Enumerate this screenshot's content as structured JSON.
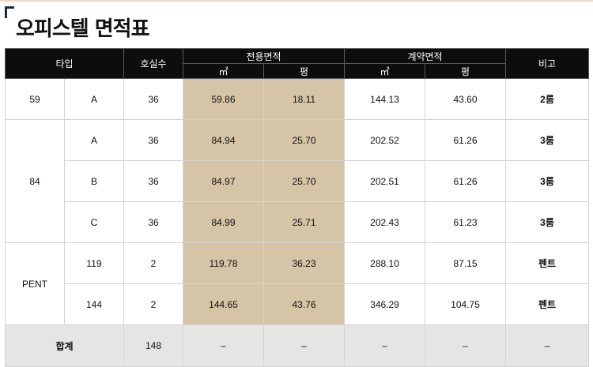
{
  "title": "오피스텔 면적표",
  "header": {
    "type": "타입",
    "units": "호실수",
    "exclusive": "전용면적",
    "contract": "계약면적",
    "note": "비고",
    "sqm": "㎡",
    "pyeong": "평"
  },
  "rows": [
    {
      "group": "59",
      "sub": "A",
      "units": "36",
      "ex_sqm": "59.86",
      "ex_py": "18.11",
      "ct_sqm": "144.13",
      "ct_py": "43.60",
      "note": "2룸"
    },
    {
      "group": "84",
      "sub": "A",
      "units": "36",
      "ex_sqm": "84.94",
      "ex_py": "25.70",
      "ct_sqm": "202.52",
      "ct_py": "61.26",
      "note": "3룸"
    },
    {
      "sub": "B",
      "units": "36",
      "ex_sqm": "84.97",
      "ex_py": "25.70",
      "ct_sqm": "202.51",
      "ct_py": "61.26",
      "note": "3룸"
    },
    {
      "sub": "C",
      "units": "36",
      "ex_sqm": "84.99",
      "ex_py": "25.71",
      "ct_sqm": "202.43",
      "ct_py": "61.23",
      "note": "3룸"
    },
    {
      "group": "PENT",
      "sub": "119",
      "units": "2",
      "ex_sqm": "119.78",
      "ex_py": "36.23",
      "ct_sqm": "288.10",
      "ct_py": "87.15",
      "note": "펜트"
    },
    {
      "sub": "144",
      "units": "2",
      "ex_sqm": "144.65",
      "ex_py": "43.76",
      "ct_sqm": "346.29",
      "ct_py": "104.75",
      "note": "펜트"
    }
  ],
  "total": {
    "label": "합계",
    "units": "148",
    "ex_sqm": "–",
    "ex_py": "–",
    "ct_sqm": "–",
    "ct_py": "–",
    "note": "–"
  }
}
